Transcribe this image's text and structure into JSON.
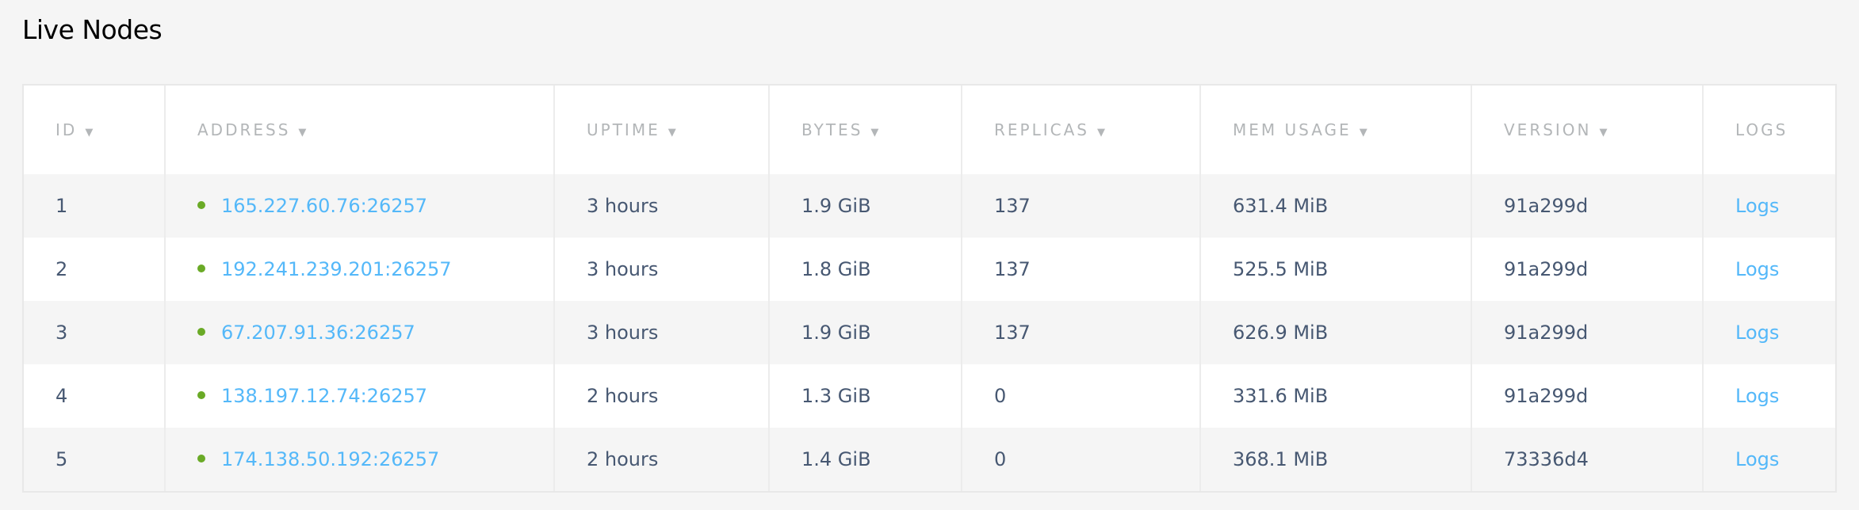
{
  "page": {
    "title": "Live Nodes"
  },
  "colors": {
    "link": "#54b8f9",
    "status_live": "#6aaa26",
    "text": "#475872",
    "header": "#b3b6b8"
  },
  "table": {
    "columns": [
      {
        "label": "ID",
        "sortable": true
      },
      {
        "label": "ADDRESS",
        "sortable": true
      },
      {
        "label": "UPTIME",
        "sortable": true
      },
      {
        "label": "BYTES",
        "sortable": true
      },
      {
        "label": "REPLICAS",
        "sortable": true
      },
      {
        "label": "MEM USAGE",
        "sortable": true
      },
      {
        "label": "VERSION",
        "sortable": true
      },
      {
        "label": "LOGS",
        "sortable": false
      }
    ],
    "sort_icon": "▼",
    "rows": [
      {
        "id": "1",
        "address": "165.227.60.76:26257",
        "uptime": "3 hours",
        "bytes": "1.9 GiB",
        "replicas": "137",
        "mem": "631.4 MiB",
        "version": "91a299d",
        "logs": "Logs"
      },
      {
        "id": "2",
        "address": "192.241.239.201:26257",
        "uptime": "3 hours",
        "bytes": "1.8 GiB",
        "replicas": "137",
        "mem": "525.5 MiB",
        "version": "91a299d",
        "logs": "Logs"
      },
      {
        "id": "3",
        "address": "67.207.91.36:26257",
        "uptime": "3 hours",
        "bytes": "1.9 GiB",
        "replicas": "137",
        "mem": "626.9 MiB",
        "version": "91a299d",
        "logs": "Logs"
      },
      {
        "id": "4",
        "address": "138.197.12.74:26257",
        "uptime": "2 hours",
        "bytes": "1.3 GiB",
        "replicas": "0",
        "mem": "331.6 MiB",
        "version": "91a299d",
        "logs": "Logs"
      },
      {
        "id": "5",
        "address": "174.138.50.192:26257",
        "uptime": "2 hours",
        "bytes": "1.4 GiB",
        "replicas": "0",
        "mem": "368.1 MiB",
        "version": "73336d4",
        "logs": "Logs"
      }
    ]
  }
}
